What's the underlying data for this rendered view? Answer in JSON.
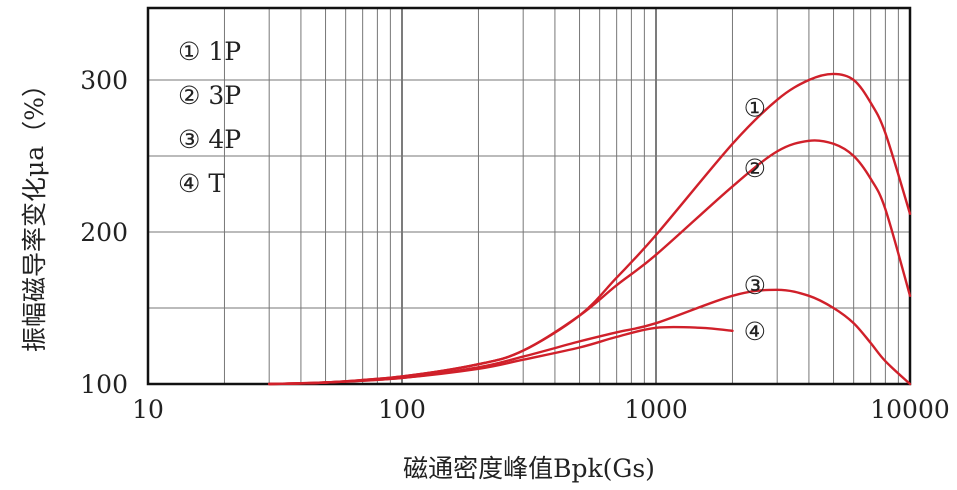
{
  "chart_data": {
    "type": "line",
    "title": "",
    "xlabel": "磁通密度峰值Bpk(Gs)",
    "ylabel": "振幅磁导率变化μa（%）",
    "x_scale": "log",
    "xlim": [
      10,
      10000
    ],
    "ylim": [
      100,
      300
    ],
    "x_ticks": [
      "10",
      "100",
      "1000",
      "10000"
    ],
    "y_ticks": [
      "100",
      "200",
      "300"
    ],
    "grid": true,
    "legend_position": "top-left",
    "legend": [
      "① 1P",
      "② 3P",
      "③ 4P",
      "④ T"
    ],
    "series": [
      {
        "name": "1P",
        "marker": "①",
        "color": "#d0202a",
        "x": [
          30,
          50,
          100,
          200,
          300,
          500,
          700,
          1000,
          2000,
          3000,
          4000,
          5000,
          6000,
          7000,
          8000,
          10000
        ],
        "y": [
          100,
          101,
          105,
          113,
          122,
          145,
          170,
          198,
          258,
          287,
          300,
          304,
          300,
          285,
          265,
          212
        ]
      },
      {
        "name": "3P",
        "marker": "②",
        "color": "#d0202a",
        "x": [
          30,
          50,
          100,
          200,
          300,
          500,
          700,
          1000,
          2000,
          3000,
          4000,
          5000,
          6000,
          7000,
          8000,
          10000
        ],
        "y": [
          100,
          101,
          105,
          113,
          122,
          145,
          165,
          185,
          230,
          253,
          260,
          258,
          250,
          235,
          215,
          158
        ]
      },
      {
        "name": "4P",
        "marker": "③",
        "color": "#d0202a",
        "x": [
          30,
          50,
          100,
          200,
          300,
          500,
          700,
          1000,
          2000,
          3000,
          4000,
          5000,
          6000,
          7000,
          8000,
          10000
        ],
        "y": [
          100,
          101,
          104,
          111,
          118,
          128,
          134,
          140,
          158,
          162,
          158,
          150,
          140,
          127,
          115,
          100
        ]
      },
      {
        "name": "T",
        "marker": "④",
        "color": "#d0202a",
        "x": [
          30,
          50,
          100,
          200,
          300,
          500,
          700,
          1000,
          1500,
          2000
        ],
        "y": [
          100,
          101,
          104,
          110,
          116,
          124,
          131,
          137,
          137,
          135
        ]
      }
    ]
  }
}
